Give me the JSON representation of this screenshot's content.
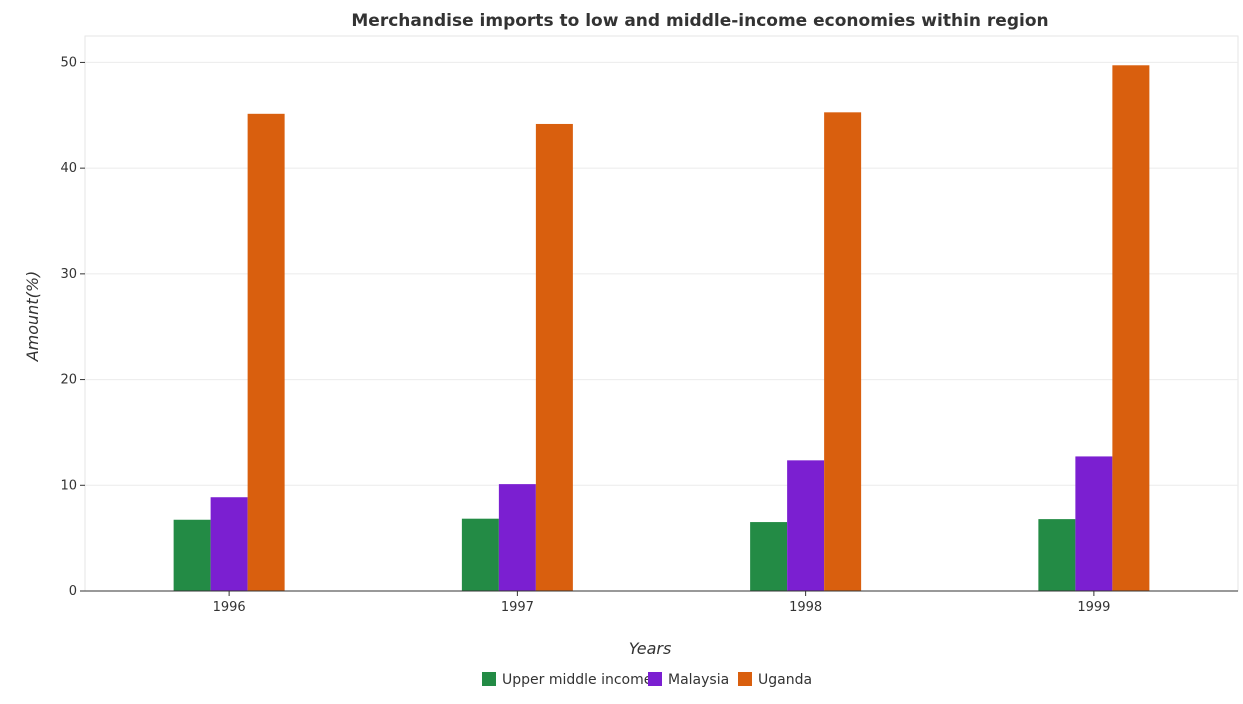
{
  "chart_data": {
    "type": "bar",
    "title": "Merchandise imports to low and middle-income economies within region",
    "xlabel": "Years",
    "ylabel": "Amount(%)",
    "categories": [
      "1996",
      "1997",
      "1998",
      "1999"
    ],
    "series": [
      {
        "name": "Upper middle income",
        "color": "#238b45",
        "values": [
          6.74,
          6.84,
          6.52,
          6.8
        ]
      },
      {
        "name": "Malaysia",
        "color": "#7b1fd1",
        "values": [
          8.87,
          10.11,
          12.36,
          12.73
        ]
      },
      {
        "name": "Uganda",
        "color": "#d95f0e",
        "values": [
          45.14,
          44.18,
          45.28,
          49.73
        ]
      }
    ],
    "ylim": [
      0,
      52.5
    ],
    "yticks": [
      0,
      10,
      20,
      30,
      40,
      50
    ],
    "grid": true,
    "legend_position": "bottom-center"
  }
}
